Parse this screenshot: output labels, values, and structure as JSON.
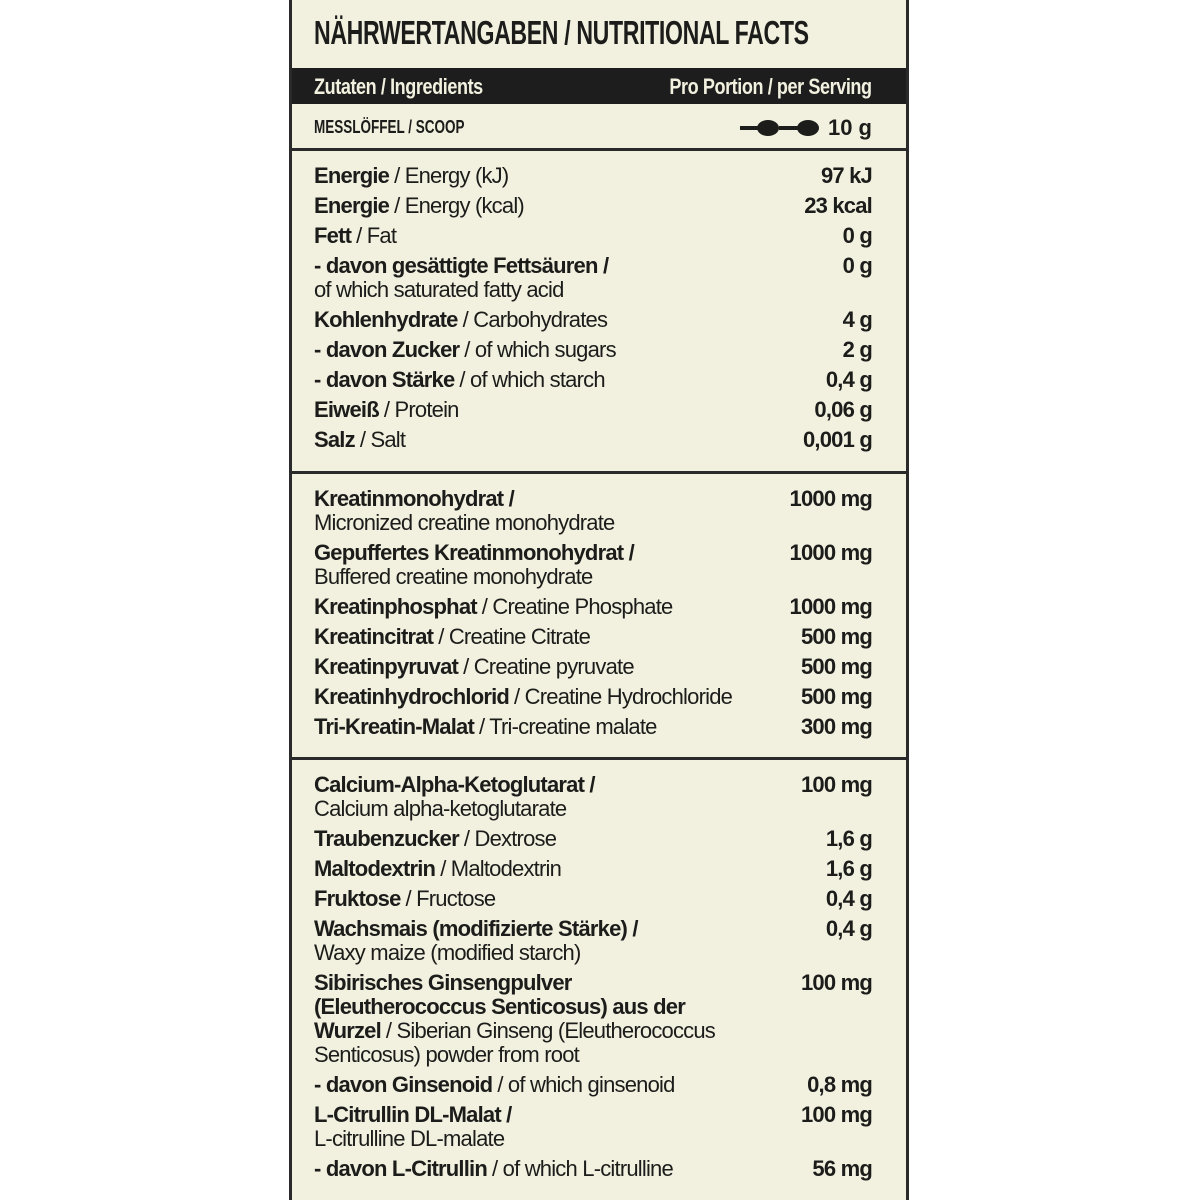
{
  "header": {
    "title": "NÄHRWERTANGABEN / NUTRITIONAL FACTS",
    "columns": {
      "ingredients": "Zutaten / Ingredients",
      "serving": "Pro Portion / per Serving"
    },
    "scoop": {
      "label": "MESSLÖFFEL / SCOOP",
      "value": "10 g"
    }
  },
  "sections": [
    {
      "rows": [
        {
          "lines": [
            {
              "de": "Energie",
              "en": "/ Energy (kJ)"
            }
          ],
          "value": "97 kJ"
        },
        {
          "lines": [
            {
              "de": "Energie",
              "en": "/ Energy (kcal)"
            }
          ],
          "value": "23 kcal"
        },
        {
          "lines": [
            {
              "de": "Fett",
              "en": "/ Fat"
            }
          ],
          "value": "0 g"
        },
        {
          "lines": [
            {
              "de": "- davon gesättigte Fettsäuren /"
            },
            {
              "en": "of which saturated fatty acid"
            }
          ],
          "value": "0 g"
        },
        {
          "lines": [
            {
              "de": "Kohlenhydrate",
              "en": "/ Carbohydrates"
            }
          ],
          "value": "4 g"
        },
        {
          "lines": [
            {
              "de": "- davon Zucker",
              "en": "/ of which sugars"
            }
          ],
          "value": "2 g"
        },
        {
          "lines": [
            {
              "de": "- davon Stärke",
              "en": "/ of which starch"
            }
          ],
          "value": "0,4 g"
        },
        {
          "lines": [
            {
              "de": "Eiweiß",
              "en": "/ Protein"
            }
          ],
          "value": "0,06 g"
        },
        {
          "lines": [
            {
              "de": "Salz",
              "en": "/ Salt"
            }
          ],
          "value": "0,001 g"
        }
      ]
    },
    {
      "rows": [
        {
          "lines": [
            {
              "de": "Kreatinmonohydrat /"
            },
            {
              "en": "Micronized creatine monohydrate"
            }
          ],
          "value": "1000 mg"
        },
        {
          "lines": [
            {
              "de": "Gepuffertes Kreatinmonohydrat /"
            },
            {
              "en": "Buffered creatine monohydrate"
            }
          ],
          "value": "1000 mg"
        },
        {
          "lines": [
            {
              "de": "Kreatinphosphat",
              "en": "/ Creatine Phosphate"
            }
          ],
          "value": "1000 mg"
        },
        {
          "lines": [
            {
              "de": "Kreatincitrat",
              "en": "/ Creatine Citrate"
            }
          ],
          "value": "500 mg"
        },
        {
          "lines": [
            {
              "de": "Kreatinpyruvat",
              "en": "/ Creatine pyruvate"
            }
          ],
          "value": "500 mg"
        },
        {
          "lines": [
            {
              "de": "Kreatinhydrochlorid",
              "en": "/ Creatine Hydrochloride"
            }
          ],
          "value": "500 mg"
        },
        {
          "lines": [
            {
              "de": "Tri-Kreatin-Malat",
              "en": "/ Tri-creatine malate"
            }
          ],
          "value": "300 mg"
        }
      ]
    },
    {
      "rows": [
        {
          "lines": [
            {
              "de": "Calcium-Alpha-Ketoglutarat /"
            },
            {
              "en": "Calcium alpha-ketoglutarate"
            }
          ],
          "value": "100 mg"
        },
        {
          "lines": [
            {
              "de": "Traubenzucker",
              "en": "/ Dextrose"
            }
          ],
          "value": "1,6 g"
        },
        {
          "lines": [
            {
              "de": "Maltodextrin",
              "en": "/ Maltodextrin"
            }
          ],
          "value": "1,6 g"
        },
        {
          "lines": [
            {
              "de": "Fruktose",
              "en": "/ Fructose"
            }
          ],
          "value": "0,4 g"
        },
        {
          "lines": [
            {
              "de": "Wachsmais (modifizierte Stärke) /"
            },
            {
              "en": "Waxy maize (modified starch)"
            }
          ],
          "value": "0,4 g"
        },
        {
          "lines": [
            {
              "de": "Sibirisches Ginsengpulver"
            },
            {
              "de": "(Eleutherococcus Senticosus) aus der"
            },
            {
              "de": "Wurzel",
              "en": "/ Siberian Ginseng (Eleutherococcus"
            },
            {
              "en": "Senticosus) powder from root"
            }
          ],
          "value": "100 mg"
        },
        {
          "lines": [
            {
              "de": "- davon Ginsenoid",
              "en": "/ of which ginsenoid"
            }
          ],
          "value": "0,8 mg"
        },
        {
          "lines": [
            {
              "de": "L-Citrullin DL-Malat /"
            },
            {
              "en": "L-citrulline DL-malate"
            }
          ],
          "value": "100 mg"
        },
        {
          "lines": [
            {
              "de": "- davon L-Citrullin",
              "en": "/ of which L-citrulline"
            }
          ],
          "value": "56 mg"
        }
      ]
    }
  ]
}
